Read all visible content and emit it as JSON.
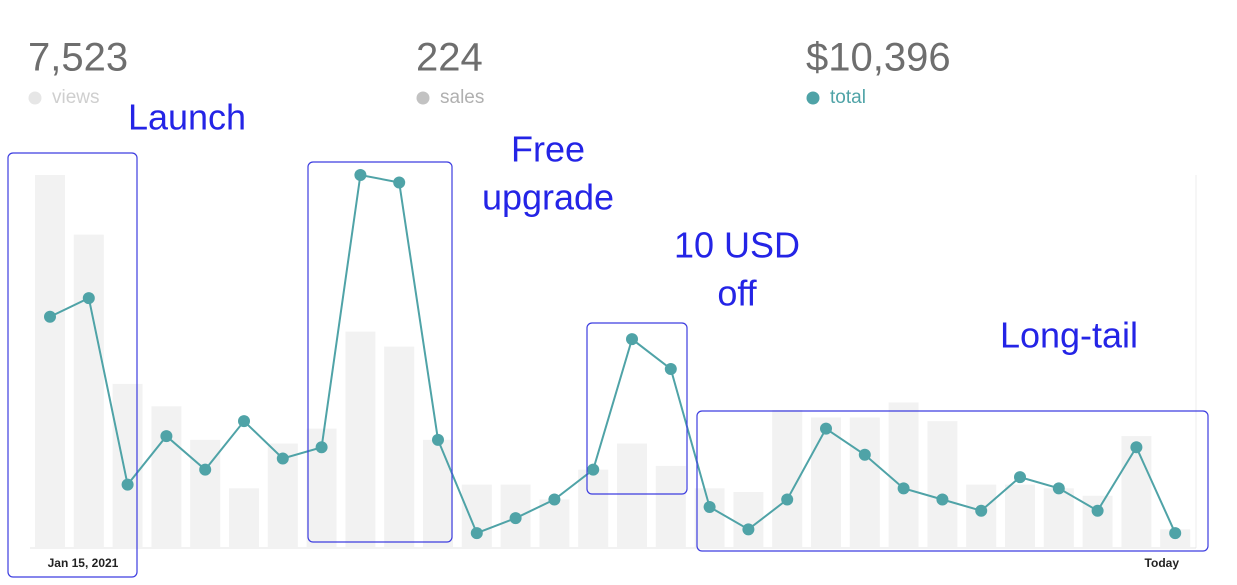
{
  "chart_data": {
    "type": "bar-line",
    "stats": [
      {
        "value": "7,523",
        "name": "views",
        "color": "#e6e6e6",
        "text_color": "#cfcfcf"
      },
      {
        "value": "224",
        "name": "sales",
        "color": "#c2c2c2",
        "text_color": "#b0b0b0"
      },
      {
        "value": "$10,396",
        "name": "total",
        "color": "#4fa3a7",
        "text_color": "#4fa3a7"
      }
    ],
    "categories": [
      "Jan 15, 2021",
      null,
      null,
      null,
      null,
      null,
      null,
      null,
      null,
      null,
      null,
      null,
      null,
      null,
      null,
      null,
      null,
      null,
      null,
      null,
      null,
      null,
      null,
      null,
      null,
      null,
      null,
      null,
      null,
      "Today"
    ],
    "series": [
      {
        "name": "views",
        "color": "#f2f2f2",
        "values": [
          100,
          84,
          44,
          38,
          29,
          16,
          28,
          32,
          58,
          54,
          29,
          17,
          17,
          13,
          21,
          28,
          22,
          16,
          15,
          37,
          35,
          35,
          39,
          34,
          17,
          17,
          16,
          14,
          30,
          5
        ]
      },
      {
        "name": "total",
        "color": "#4fa3a7",
        "values": [
          62,
          67,
          17,
          30,
          21,
          34,
          24,
          27,
          100,
          98,
          29,
          4,
          8,
          13,
          21,
          56,
          48,
          11,
          5,
          13,
          32,
          25,
          16,
          13,
          10,
          19,
          16,
          10,
          27,
          4
        ]
      }
    ],
    "ylim": [
      0,
      100
    ],
    "annotations": [
      {
        "lines": [
          "Launch"
        ]
      },
      {
        "lines": [
          "Free",
          "upgrade"
        ]
      },
      {
        "lines": [
          "10 USD",
          "off"
        ]
      },
      {
        "lines": [
          "Long-tail"
        ]
      }
    ]
  }
}
